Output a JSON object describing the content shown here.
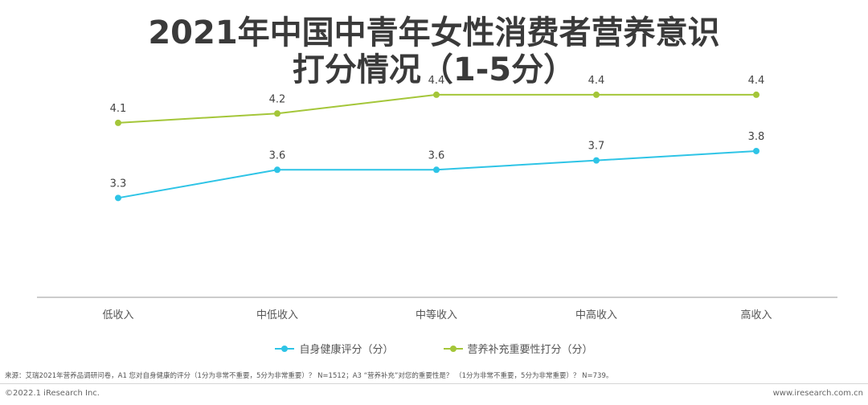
{
  "title_line1": "2021年中国中青年女性消费者营养意识",
  "title_line2": "打分情况（1-5分）",
  "chart_data": {
    "type": "line",
    "categories": [
      "低收入",
      "中低收入",
      "中等收入",
      "中高收入",
      "高收入"
    ],
    "series": [
      {
        "name": "自身健康评分（分）",
        "values": [
          3.3,
          3.6,
          3.6,
          3.7,
          3.8
        ],
        "labels": [
          "3.3",
          "3.6",
          "3.6",
          "3.7",
          "3.8"
        ],
        "color": "#2ec4e6"
      },
      {
        "name": "营养补充重要性打分（分）",
        "values": [
          4.1,
          4.2,
          4.4,
          4.4,
          4.4
        ],
        "labels": [
          "4.1",
          "4.2",
          "4.4",
          "4.4",
          "4.4"
        ],
        "color": "#a4c639"
      }
    ],
    "grid": false,
    "legend": "bottom-center"
  },
  "source": "来源：艾瑞2021年营养品调研问卷，A1 您对自身健康的评分（1分为非常不重要，5分为非常重要）？ N=1512；A3 “营养补充”对您的重要性是？ （1分为非常不重要，5分为非常重要）？ N=739。",
  "copyright": "©2022.1 iResearch Inc.",
  "website": "www.iresearch.com.cn"
}
